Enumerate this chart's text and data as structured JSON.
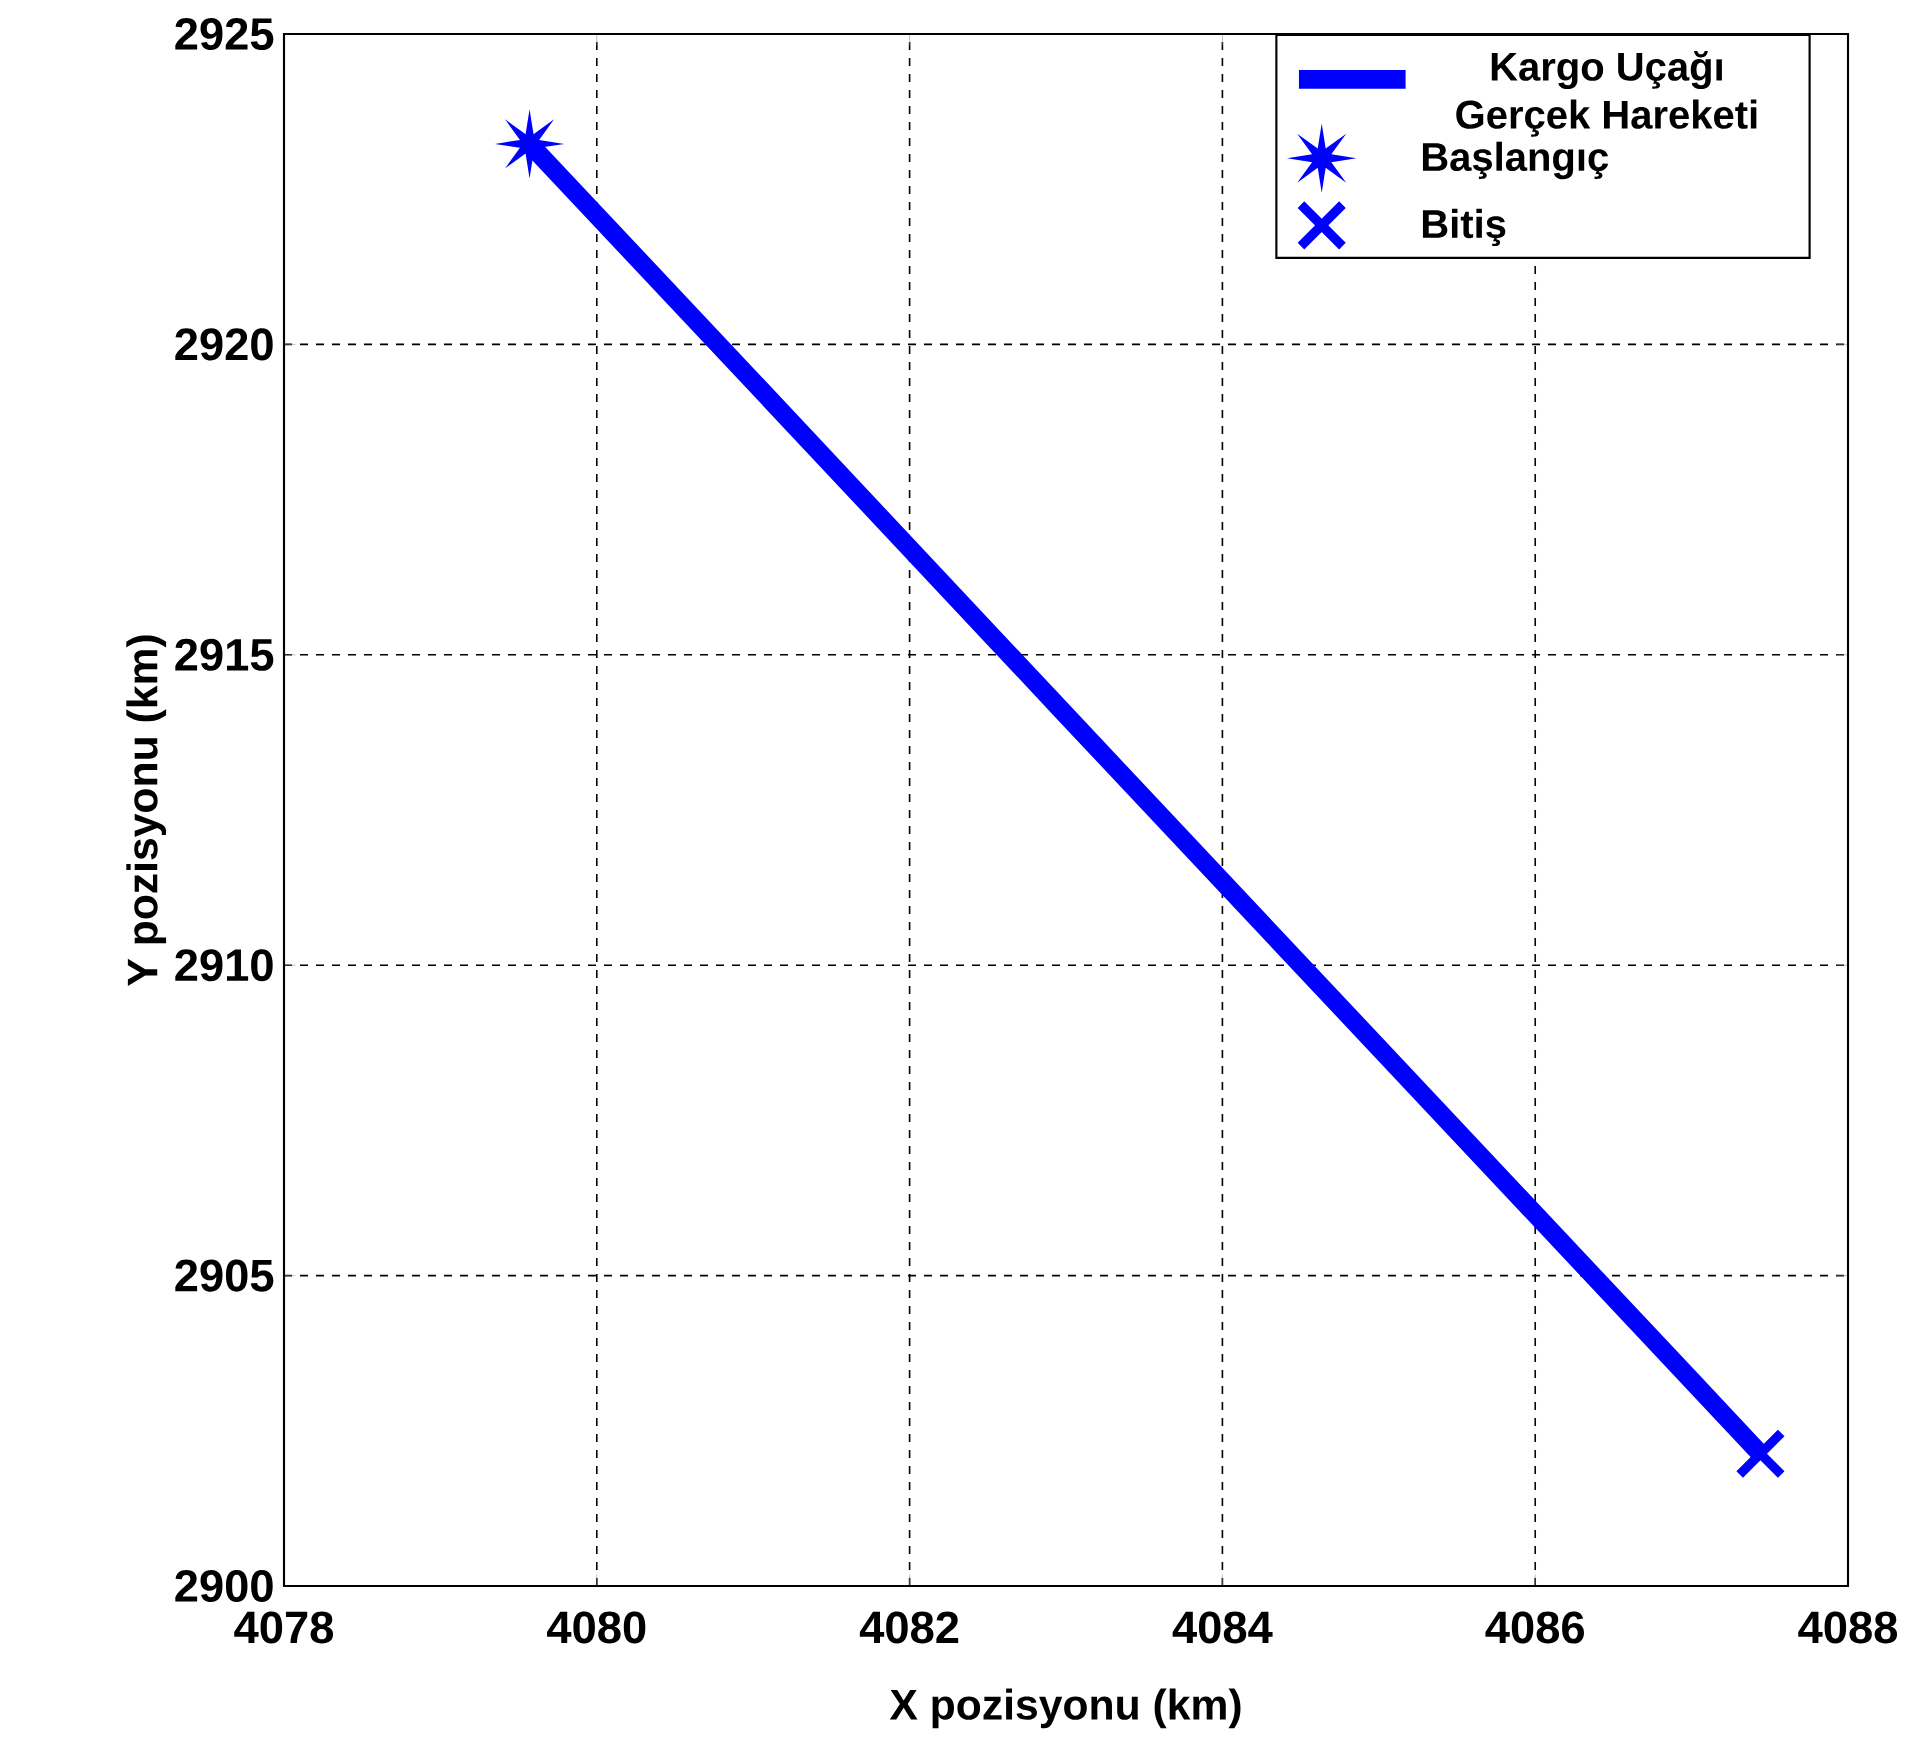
{
  "chart_data": {
    "type": "line",
    "xlabel": "X pozisyonu (km)",
    "ylabel": "Y pozisyonu (km)",
    "xlim": [
      4078,
      4088
    ],
    "ylim": [
      2900,
      2925
    ],
    "xticks": [
      4078,
      4080,
      4082,
      4084,
      4086,
      4088
    ],
    "yticks": [
      2900,
      2905,
      2910,
      2915,
      2920,
      2925
    ],
    "grid": true,
    "legend": "top right",
    "series": [
      {
        "name": "Kargo Uçağı Gerçek Hareketi",
        "color": "#0000ff",
        "marker": "none",
        "line_style": "solid",
        "x": [
          4079.57,
          4081,
          4083,
          4085,
          4087,
          4087.44
        ],
        "values": [
          2923.23,
          2919.4,
          2914.03,
          2908.67,
          2903.31,
          2902.13
        ]
      },
      {
        "name": "Başlangıç",
        "type": "scatter",
        "color": "#0000ff",
        "marker": "star",
        "x": [
          4079.57
        ],
        "values": [
          2923.23
        ]
      },
      {
        "name": "Bitiş",
        "type": "scatter",
        "color": "#0000ff",
        "marker": "cross",
        "x": [
          4087.44
        ],
        "values": [
          2902.13
        ]
      }
    ]
  }
}
